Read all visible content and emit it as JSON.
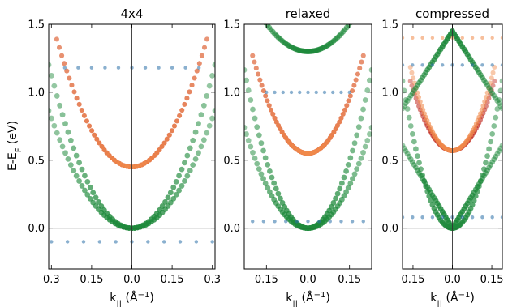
{
  "figure": {
    "ylabel": "E-E",
    "ylabel_sub": "F",
    "ylabel_unit": " (eV)",
    "colors": {
      "green": "#1f8a3c",
      "red": "#c0281e",
      "orange": "#f08a4b",
      "blue": "#2a6fa8",
      "lightblue": "#7fa6d0"
    }
  },
  "chart_data": [
    {
      "type": "scatter",
      "title": "4x4",
      "xlabel": "k",
      "xlabel_sub": "||",
      "xlabel_unit": " (Å",
      "xlabel_exp": "−1",
      "xlabel_close": ")",
      "xlim": [
        -0.31,
        0.31
      ],
      "ylim": [
        -0.3,
        1.5
      ],
      "xticks": [
        -0.3,
        -0.15,
        0.0,
        0.15,
        0.3
      ],
      "xtick_labels": [
        "0.3",
        "0.15",
        "0.0",
        "0.15",
        "0.3"
      ],
      "yticks": [
        0.0,
        0.5,
        1.0,
        1.5
      ],
      "ytick_labels": [
        "0.0",
        "0.5",
        "1.0",
        "1.5"
      ],
      "series": [
        {
          "color": "green",
          "band": "parabola",
          "e0": 0.0,
          "a": 12.5,
          "kmax": 0.31
        },
        {
          "color": "green",
          "band": "parabola",
          "e0": 0.0,
          "a": 9.0,
          "kmax": 0.31
        },
        {
          "color": "red",
          "band": "parabola",
          "e0": 0.45,
          "a": 12.0,
          "kmax": 0.28
        },
        {
          "color": "orange",
          "band": "parabola",
          "e0": 0.45,
          "a": 12.0,
          "kmax": 0.28
        },
        {
          "color": "blue",
          "band": "flat",
          "e0": 1.18,
          "kmax": 0.25
        },
        {
          "color": "blue",
          "band": "flat",
          "e0": -0.1,
          "kmax": 0.3
        }
      ]
    },
    {
      "type": "scatter",
      "title": "relaxed",
      "xlabel": "k",
      "xlabel_sub": "||",
      "xlabel_unit": " (Å",
      "xlabel_exp": "−1",
      "xlabel_close": ")",
      "xlim": [
        -0.23,
        0.23
      ],
      "ylim": [
        -0.3,
        1.5
      ],
      "xticks": [
        -0.15,
        0.0,
        0.15
      ],
      "xtick_labels": [
        "0.15",
        "0.0",
        "0.15"
      ],
      "yticks": [
        0.0,
        0.5,
        1.0,
        1.5
      ],
      "ytick_labels": [
        "0.0",
        "0.5",
        "1.0",
        "1.5"
      ],
      "series": [
        {
          "color": "green",
          "band": "parabola",
          "e0": 0.0,
          "a": 22.0,
          "kmax": 0.23
        },
        {
          "color": "green",
          "band": "parabola",
          "e0": 0.0,
          "a": 14.0,
          "kmax": 0.23
        },
        {
          "color": "red",
          "band": "parabola",
          "e0": 0.55,
          "a": 18.0,
          "kmax": 0.2
        },
        {
          "color": "orange",
          "band": "parabola",
          "e0": 0.55,
          "a": 18.0,
          "kmax": 0.2
        },
        {
          "color": "green",
          "band": "parabola",
          "e0": 1.3,
          "a": 9.0,
          "kmax": 0.2
        },
        {
          "color": "blue",
          "band": "flat",
          "e0": 0.05,
          "kmax": 0.2
        },
        {
          "color": "blue",
          "band": "flat",
          "e0": 1.0,
          "kmax": 0.15
        }
      ]
    },
    {
      "type": "scatter",
      "title": "compressed",
      "xlabel": "k",
      "xlabel_sub": "||",
      "xlabel_unit": " (Å",
      "xlabel_exp": "−1",
      "xlabel_close": ")",
      "xlim": [
        -0.19,
        0.19
      ],
      "ylim": [
        -0.3,
        1.5
      ],
      "xticks": [
        -0.15,
        0.0,
        0.15
      ],
      "xtick_labels": [
        "0.15",
        "0.0",
        "0.15"
      ],
      "yticks": [
        0.0,
        0.5,
        1.0,
        1.5
      ],
      "ytick_labels": [
        "0.0",
        "0.5",
        "1.0",
        "1.5"
      ],
      "series": [
        {
          "color": "green",
          "band": "vshape",
          "e0": 0.0,
          "slope": 3.2,
          "kmax": 0.19
        },
        {
          "color": "green",
          "band": "parabola",
          "e0": 0.0,
          "a": 30.0,
          "kmax": 0.19
        },
        {
          "color": "red",
          "band": "parabola",
          "e0": 0.57,
          "a": 20.0,
          "kmax": 0.16
        },
        {
          "color": "orange",
          "band": "parabola",
          "e0": 0.57,
          "a": 24.0,
          "kmax": 0.16
        },
        {
          "color": "green",
          "band": "invvshape",
          "e0": 1.45,
          "slope": 3.0,
          "kmax": 0.19
        },
        {
          "color": "orange",
          "band": "flat",
          "e0": 1.4,
          "kmax": 0.19
        },
        {
          "color": "blue",
          "band": "flat",
          "e0": 1.2,
          "kmax": 0.19
        },
        {
          "color": "blue",
          "band": "flat",
          "e0": 0.08,
          "kmax": 0.19
        }
      ]
    }
  ]
}
